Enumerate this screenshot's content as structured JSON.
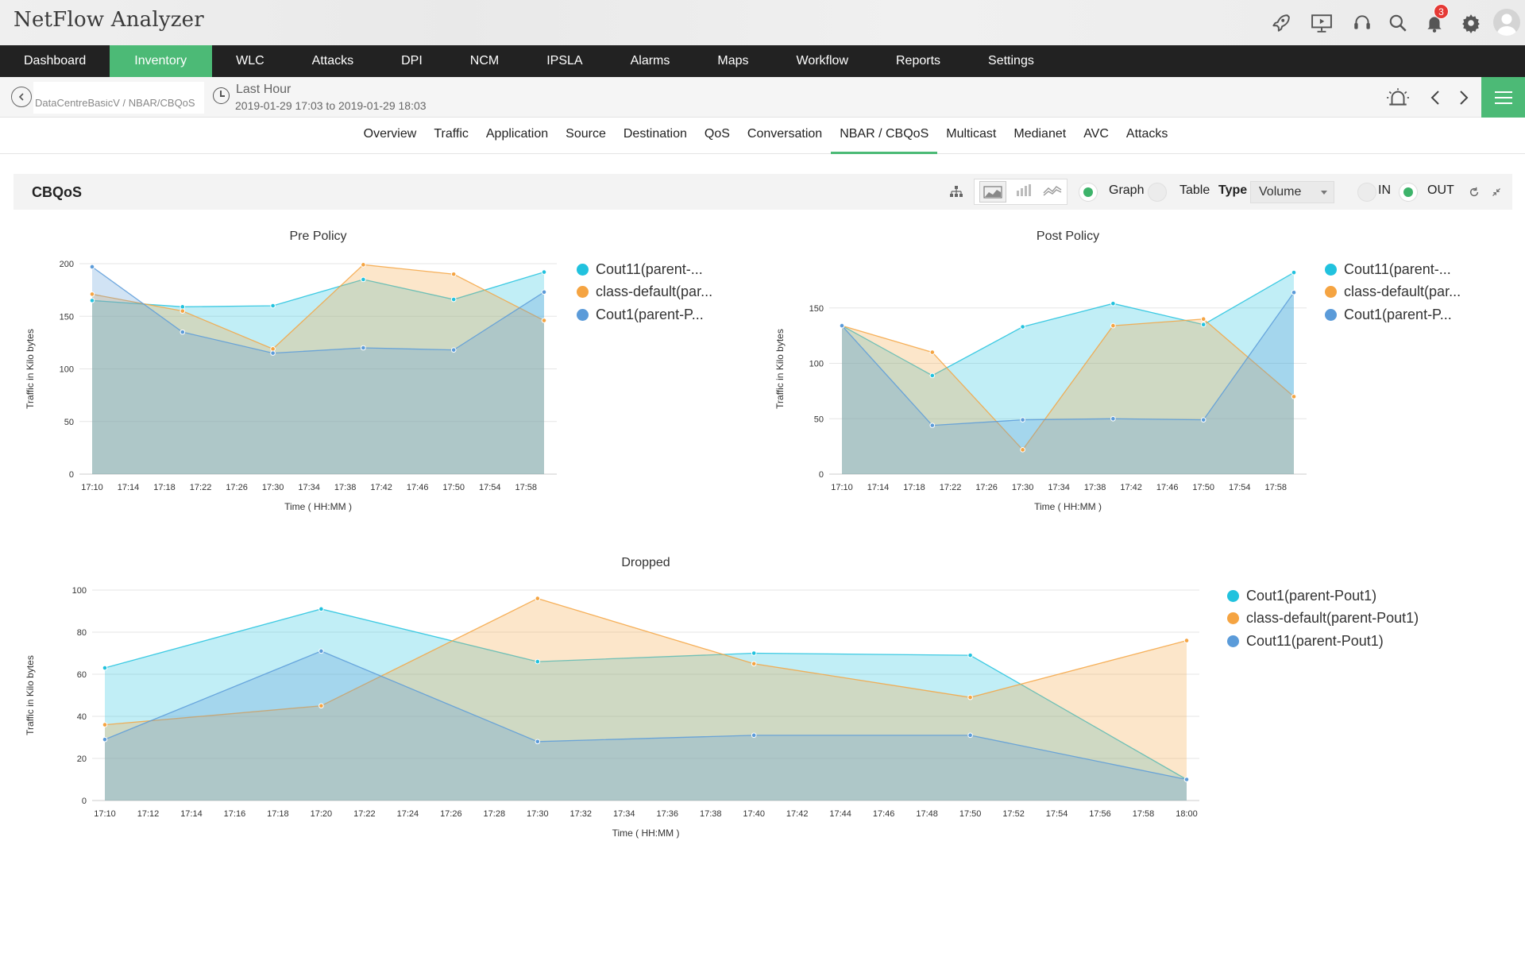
{
  "app": {
    "title": "NetFlow Analyzer",
    "notification_count": "3"
  },
  "nav": [
    {
      "label": "Dashboard",
      "active": false
    },
    {
      "label": "Inventory",
      "active": true
    },
    {
      "label": "WLC",
      "active": false
    },
    {
      "label": "Attacks",
      "active": false
    },
    {
      "label": "DPI",
      "active": false
    },
    {
      "label": "NCM",
      "active": false
    },
    {
      "label": "IPSLA",
      "active": false
    },
    {
      "label": "Alarms",
      "active": false
    },
    {
      "label": "Maps",
      "active": false
    },
    {
      "label": "Workflow",
      "active": false
    },
    {
      "label": "Reports",
      "active": false
    },
    {
      "label": "Settings",
      "active": false
    }
  ],
  "subheader": {
    "breadcrumb": "DataCentreBasicV / NBAR/CBQoS",
    "time_label": "Last Hour",
    "time_range": "2019-01-29 17:03 to 2019-01-29 18:03"
  },
  "tabs": [
    {
      "label": "Overview",
      "active": false
    },
    {
      "label": "Traffic",
      "active": false
    },
    {
      "label": "Application",
      "active": false
    },
    {
      "label": "Source",
      "active": false
    },
    {
      "label": "Destination",
      "active": false
    },
    {
      "label": "QoS",
      "active": false
    },
    {
      "label": "Conversation",
      "active": false
    },
    {
      "label": "NBAR / CBQoS",
      "active": true
    },
    {
      "label": "Multicast",
      "active": false
    },
    {
      "label": "Medianet",
      "active": false
    },
    {
      "label": "AVC",
      "active": false
    },
    {
      "label": "Attacks",
      "active": false
    }
  ],
  "panel": {
    "title": "CBQoS",
    "graph_label": "Graph",
    "table_label": "Table",
    "type_label": "Type",
    "type_value": "Volume",
    "in_label": "IN",
    "out_label": "OUT",
    "view_mode": "Graph",
    "direction": "OUT"
  },
  "colors": {
    "cyan": "#21c2de",
    "orange": "#f5a442",
    "blue": "#5b9bd9",
    "accent": "#4cba76",
    "nav_bg": "#222222"
  },
  "chart_data": [
    {
      "type": "area",
      "title": "Pre Policy",
      "xlabel": "Time ( HH:MM )",
      "ylabel": "Traffic in Kilo bytes",
      "ylim": [
        0,
        200
      ],
      "yticks": [
        0,
        50,
        100,
        150,
        200
      ],
      "xticks": [
        "17:10",
        "17:14",
        "17:18",
        "17:22",
        "17:26",
        "17:30",
        "17:34",
        "17:38",
        "17:42",
        "17:46",
        "17:50",
        "17:54",
        "17:58"
      ],
      "xrange": [
        "17:10",
        "18:00"
      ],
      "series": [
        {
          "name": "Cout11(parent-...",
          "color": "#21c2de",
          "x": [
            "17:10",
            "17:20",
            "17:30",
            "17:40",
            "17:50",
            "18:00"
          ],
          "values": [
            165,
            159,
            160,
            185,
            166,
            192
          ]
        },
        {
          "name": "class-default(par...",
          "color": "#f5a442",
          "x": [
            "17:10",
            "17:20",
            "17:30",
            "17:40",
            "17:50",
            "18:00"
          ],
          "values": [
            171,
            155,
            119,
            199,
            190,
            146
          ]
        },
        {
          "name": "Cout1(parent-P...",
          "color": "#5b9bd9",
          "x": [
            "17:10",
            "17:20",
            "17:30",
            "17:40",
            "17:50",
            "18:00"
          ],
          "values": [
            197,
            135,
            115,
            120,
            118,
            173
          ]
        }
      ]
    },
    {
      "type": "area",
      "title": "Post Policy",
      "xlabel": "Time ( HH:MM )",
      "ylabel": "Traffic in Kilo bytes",
      "ylim": [
        0,
        190
      ],
      "yticks": [
        0,
        50,
        100,
        150
      ],
      "xticks": [
        "17:10",
        "17:14",
        "17:18",
        "17:22",
        "17:26",
        "17:30",
        "17:34",
        "17:38",
        "17:42",
        "17:46",
        "17:50",
        "17:54",
        "17:58"
      ],
      "xrange": [
        "17:10",
        "18:00"
      ],
      "series": [
        {
          "name": "Cout11(parent-...",
          "color": "#21c2de",
          "x": [
            "17:10",
            "17:20",
            "17:30",
            "17:40",
            "17:50",
            "18:00"
          ],
          "values": [
            134,
            89,
            133,
            154,
            135,
            182
          ]
        },
        {
          "name": "class-default(par...",
          "color": "#f5a442",
          "x": [
            "17:10",
            "17:20",
            "17:30",
            "17:40",
            "17:50",
            "18:00"
          ],
          "values": [
            134,
            110,
            22,
            134,
            140,
            70
          ]
        },
        {
          "name": "Cout1(parent-P...",
          "color": "#5b9bd9",
          "x": [
            "17:10",
            "17:20",
            "17:30",
            "17:40",
            "17:50",
            "18:00"
          ],
          "values": [
            134,
            44,
            49,
            50,
            49,
            164
          ]
        }
      ]
    },
    {
      "type": "area",
      "title": "Dropped",
      "xlabel": "Time ( HH:MM )",
      "ylabel": "Traffic in Kilo bytes",
      "ylim": [
        0,
        100
      ],
      "yticks": [
        0,
        20,
        40,
        60,
        80,
        100
      ],
      "xticks": [
        "17:10",
        "17:12",
        "17:14",
        "17:16",
        "17:18",
        "17:20",
        "17:22",
        "17:24",
        "17:26",
        "17:28",
        "17:30",
        "17:32",
        "17:34",
        "17:36",
        "17:38",
        "17:40",
        "17:42",
        "17:44",
        "17:46",
        "17:48",
        "17:50",
        "17:52",
        "17:54",
        "17:56",
        "17:58",
        "18:00"
      ],
      "xrange": [
        "17:10",
        "18:00"
      ],
      "series": [
        {
          "name": "Cout1(parent-Pout1)",
          "color": "#21c2de",
          "x": [
            "17:10",
            "17:20",
            "17:30",
            "17:40",
            "17:50",
            "18:00"
          ],
          "values": [
            63,
            91,
            66,
            70,
            69,
            10
          ]
        },
        {
          "name": "class-default(parent-Pout1)",
          "color": "#f5a442",
          "x": [
            "17:10",
            "17:20",
            "17:30",
            "17:40",
            "17:50",
            "18:00"
          ],
          "values": [
            36,
            45,
            96,
            65,
            49,
            76
          ]
        },
        {
          "name": "Cout11(parent-Pout1)",
          "color": "#5b9bd9",
          "x": [
            "17:10",
            "17:20",
            "17:30",
            "17:40",
            "17:50",
            "18:00"
          ],
          "values": [
            29,
            71,
            28,
            31,
            31,
            10
          ]
        }
      ]
    }
  ]
}
